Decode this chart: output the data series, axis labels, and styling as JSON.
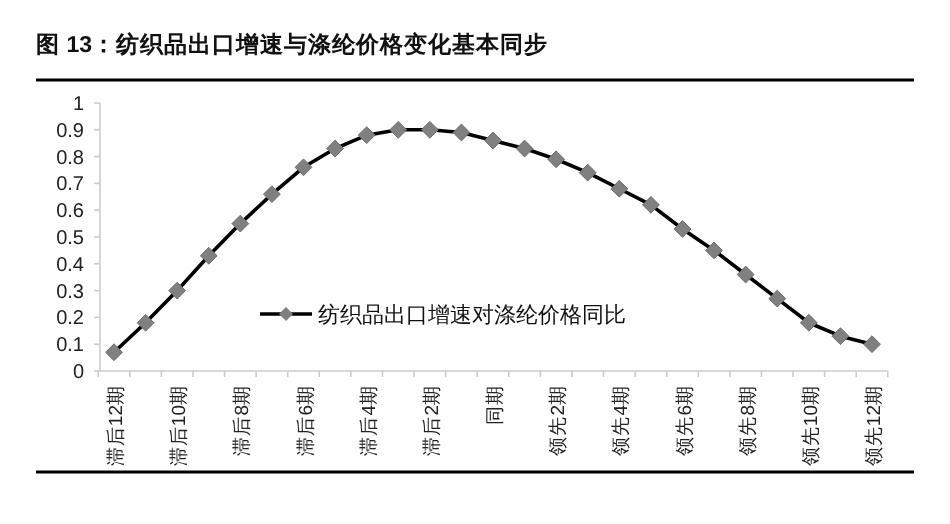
{
  "chart_data": {
    "type": "line",
    "title": "图 13：纺织品出口增速与涤纶价格变化基本同步",
    "categories": [
      "滞后12期",
      null,
      "滞后10期",
      null,
      "滞后8期",
      null,
      "滞后6期",
      null,
      "滞后4期",
      null,
      "滞后2期",
      null,
      "同期",
      null,
      "领先2期",
      null,
      "领先4期",
      null,
      "领先6期",
      null,
      "领先8期",
      null,
      "领先10期",
      null,
      "领先12期"
    ],
    "series": [
      {
        "name": "纺织品出口增速对涤纶价格同比",
        "color": "#000000",
        "values": [
          0.07,
          0.18,
          0.3,
          0.43,
          0.55,
          0.66,
          0.76,
          0.83,
          0.88,
          0.9,
          0.9,
          0.89,
          0.86,
          0.83,
          0.79,
          0.74,
          0.68,
          0.62,
          0.53,
          0.45,
          0.36,
          0.27,
          0.18,
          0.13,
          0.1
        ]
      }
    ],
    "ylim": [
      0,
      1
    ],
    "yticks": [
      0,
      0.1,
      0.2,
      0.3,
      0.4,
      0.5,
      0.6,
      0.7,
      0.8,
      0.9,
      1
    ],
    "marker": "diamond",
    "legend": "left",
    "grid": false
  }
}
